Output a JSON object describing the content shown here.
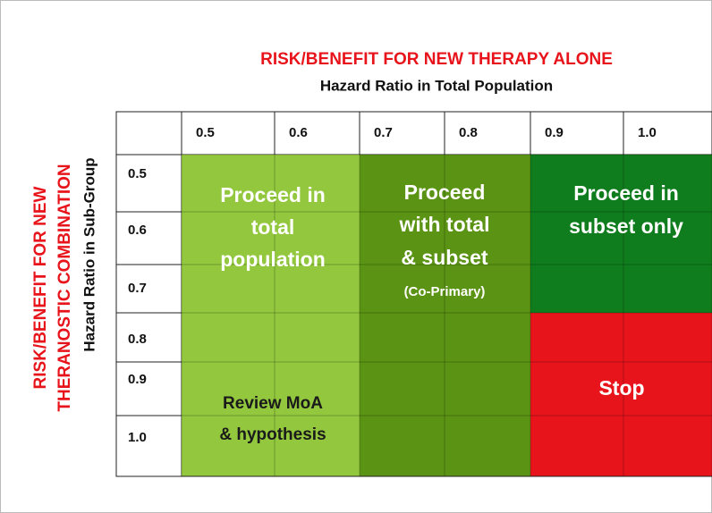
{
  "header": {
    "title": "RISK/BENEFIT FOR NEW THERAPY ALONE",
    "subtitle": "Hazard Ratio in Total Population"
  },
  "side_header": {
    "title_lines": [
      "RISK/BENEFIT FOR NEW",
      "THERANOSTIC COMBINATION"
    ],
    "subtitle": "Hazard Ratio in Sub-Group"
  },
  "table": {
    "columns": [
      "0.5",
      "0.6",
      "0.7",
      "0.8",
      "0.9",
      "1.0"
    ],
    "rows": [
      "0.5",
      "0.6",
      "0.7",
      "0.8",
      "0.9",
      "1.0"
    ]
  },
  "regions": [
    {
      "lines": [
        "Proceed in",
        "total",
        "population"
      ]
    },
    {
      "lines": [
        "Review MoA",
        "& hypothesis"
      ]
    },
    {
      "lines": [
        "Proceed",
        "with total",
        "& subset"
      ],
      "note": "(Co-Primary)"
    },
    {
      "lines": [
        "Proceed in",
        "subset only"
      ]
    },
    {
      "lines": [
        "Stop"
      ]
    }
  ]
}
